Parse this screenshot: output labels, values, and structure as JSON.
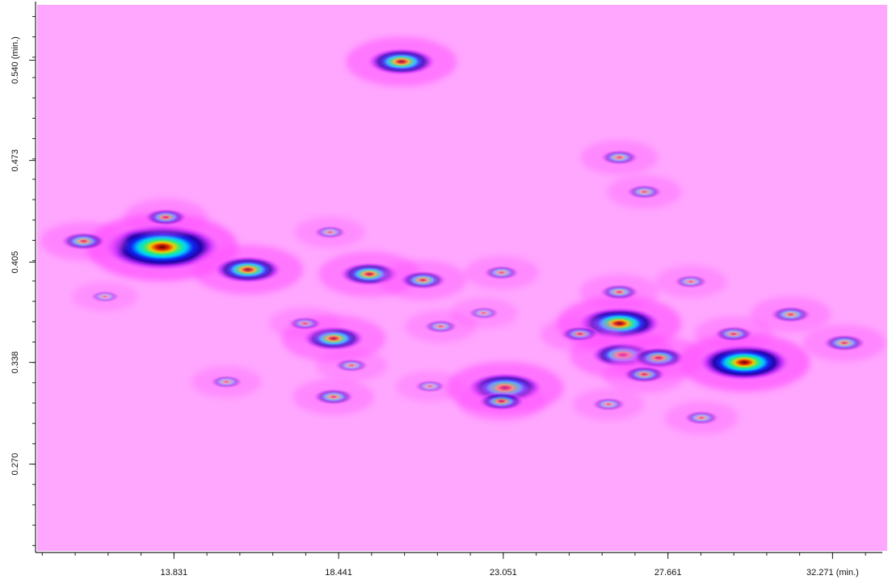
{
  "chart_data": {
    "type": "heatmap",
    "title": "",
    "xlabel": "",
    "ylabel": "",
    "x_unit": "(min.)",
    "y_unit": "(min.)",
    "xlim": [
      10.0,
      33.8
    ],
    "ylim": [
      0.212,
      0.577
    ],
    "x_ticks": [
      {
        "value": 13.831,
        "label": "13.831"
      },
      {
        "value": 18.441,
        "label": "18.441"
      },
      {
        "value": 23.051,
        "label": "23.051"
      },
      {
        "value": 27.661,
        "label": "27.661"
      },
      {
        "value": 32.271,
        "label": "32.271 (min.)"
      }
    ],
    "y_ticks": [
      {
        "value": 0.27,
        "label": "0.270"
      },
      {
        "value": 0.338,
        "label": "0.338"
      },
      {
        "value": 0.405,
        "label": "0.405"
      },
      {
        "value": 0.473,
        "label": "0.473"
      },
      {
        "value": 0.54,
        "label": "0.540 (min.)"
      }
    ],
    "background_color": "#ffa6ff",
    "colormap": [
      "#ff80ff",
      "#cc33ff",
      "#2200aa",
      "#1122ee",
      "#00ccff",
      "#22ee88",
      "#eecc00",
      "#dd2200",
      "#550000"
    ],
    "peaks": [
      {
        "x": 13.5,
        "y": 0.415,
        "intensity": 1.0
      },
      {
        "x": 15.9,
        "y": 0.4,
        "intensity": 0.55
      },
      {
        "x": 11.3,
        "y": 0.419,
        "intensity": 0.28
      },
      {
        "x": 13.6,
        "y": 0.435,
        "intensity": 0.25
      },
      {
        "x": 20.2,
        "y": 0.539,
        "intensity": 0.55
      },
      {
        "x": 19.3,
        "y": 0.397,
        "intensity": 0.45
      },
      {
        "x": 20.8,
        "y": 0.393,
        "intensity": 0.3
      },
      {
        "x": 18.3,
        "y": 0.354,
        "intensity": 0.48
      },
      {
        "x": 17.5,
        "y": 0.364,
        "intensity": 0.12
      },
      {
        "x": 18.8,
        "y": 0.336,
        "intensity": 0.12
      },
      {
        "x": 18.3,
        "y": 0.315,
        "intensity": 0.22
      },
      {
        "x": 18.2,
        "y": 0.425,
        "intensity": 0.1
      },
      {
        "x": 21.3,
        "y": 0.362,
        "intensity": 0.12
      },
      {
        "x": 22.5,
        "y": 0.371,
        "intensity": 0.08
      },
      {
        "x": 23.0,
        "y": 0.398,
        "intensity": 0.15
      },
      {
        "x": 23.1,
        "y": 0.321,
        "intensity": 0.62
      },
      {
        "x": 23.0,
        "y": 0.312,
        "intensity": 0.3
      },
      {
        "x": 21.0,
        "y": 0.322,
        "intensity": 0.08
      },
      {
        "x": 26.3,
        "y": 0.364,
        "intensity": 0.7
      },
      {
        "x": 26.3,
        "y": 0.385,
        "intensity": 0.2
      },
      {
        "x": 25.2,
        "y": 0.357,
        "intensity": 0.2
      },
      {
        "x": 26.4,
        "y": 0.343,
        "intensity": 0.5
      },
      {
        "x": 27.4,
        "y": 0.341,
        "intensity": 0.4
      },
      {
        "x": 27.0,
        "y": 0.33,
        "intensity": 0.25
      },
      {
        "x": 26.3,
        "y": 0.475,
        "intensity": 0.18
      },
      {
        "x": 27.0,
        "y": 0.452,
        "intensity": 0.15
      },
      {
        "x": 29.8,
        "y": 0.338,
        "intensity": 0.78
      },
      {
        "x": 29.5,
        "y": 0.357,
        "intensity": 0.2
      },
      {
        "x": 31.1,
        "y": 0.37,
        "intensity": 0.22
      },
      {
        "x": 32.6,
        "y": 0.351,
        "intensity": 0.24
      },
      {
        "x": 28.3,
        "y": 0.392,
        "intensity": 0.12
      },
      {
        "x": 26.0,
        "y": 0.31,
        "intensity": 0.12
      },
      {
        "x": 28.6,
        "y": 0.301,
        "intensity": 0.14
      },
      {
        "x": 15.3,
        "y": 0.325,
        "intensity": 0.1
      },
      {
        "x": 11.9,
        "y": 0.382,
        "intensity": 0.05
      }
    ]
  }
}
